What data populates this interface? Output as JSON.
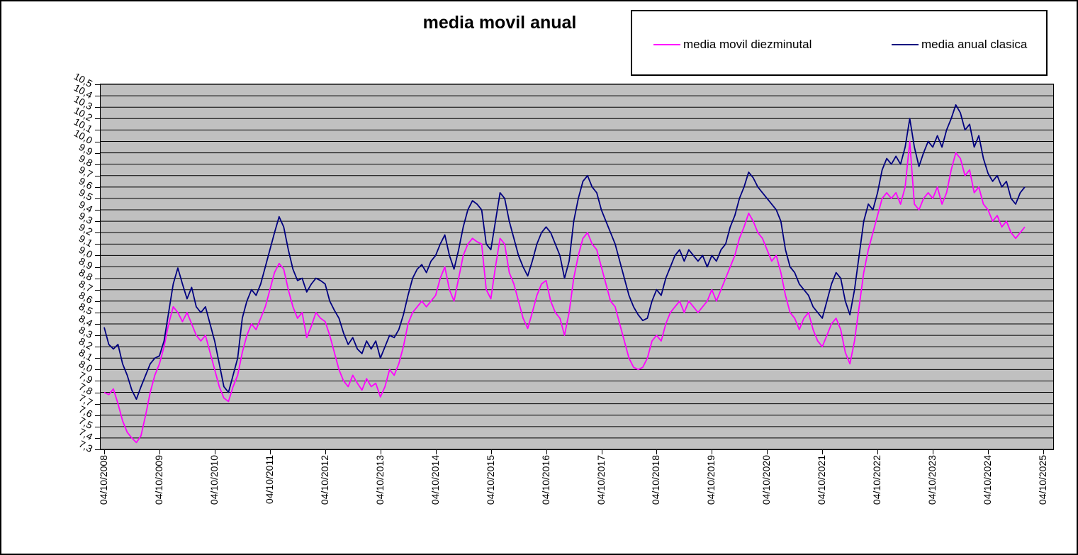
{
  "chart_data": {
    "type": "line",
    "title": "media movil anual",
    "legend_position": "top-right",
    "grid": "horizontal",
    "plot_bg_color": "#C0C0C0",
    "grid_color": "#000000",
    "y_min": 7.3,
    "y_max": 10.5,
    "y_step": 0.1,
    "y_tick_labels": [
      "7,3",
      "7,4",
      "7,5",
      "7,6",
      "7,7",
      "7,8",
      "7,9",
      "8,0",
      "8,1",
      "8,2",
      "8,3",
      "8,4",
      "8,5",
      "8,6",
      "8,7",
      "8,8",
      "8,9",
      "9,0",
      "9,1",
      "9,2",
      "9,3",
      "9,4",
      "9,5",
      "9,6",
      "9,7",
      "9,8",
      "9,9",
      "10,0",
      "10,1",
      "10,2",
      "10,3",
      "10,4",
      "10,5"
    ],
    "x_tick_labels": [
      "04/10/2008",
      "04/10/2009",
      "04/10/2010",
      "04/10/2011",
      "04/10/2012",
      "04/10/2013",
      "04/10/2014",
      "04/10/2015",
      "04/10/2016",
      "04/10/2017",
      "04/10/2018",
      "04/10/2019",
      "04/10/2020",
      "04/10/2021",
      "04/10/2022",
      "04/10/2023",
      "04/10/2024",
      "04/10/2025"
    ],
    "x_start": "04/10/2008",
    "x_frequency": "monthly",
    "series": [
      {
        "name": "media movil diezminutal",
        "color": "#FF00FF",
        "values": [
          7.8,
          7.78,
          7.83,
          7.7,
          7.55,
          7.45,
          7.4,
          7.36,
          7.42,
          7.6,
          7.8,
          7.95,
          8.05,
          8.2,
          8.4,
          8.55,
          8.5,
          8.42,
          8.5,
          8.4,
          8.3,
          8.25,
          8.3,
          8.15,
          8.0,
          7.85,
          7.75,
          7.72,
          7.85,
          7.95,
          8.15,
          8.3,
          8.4,
          8.35,
          8.45,
          8.55,
          8.7,
          8.85,
          8.93,
          8.88,
          8.7,
          8.55,
          8.45,
          8.5,
          8.28,
          8.38,
          8.5,
          8.45,
          8.42,
          8.3,
          8.15,
          8.0,
          7.9,
          7.85,
          7.95,
          7.88,
          7.82,
          7.92,
          7.85,
          7.88,
          7.76,
          7.85,
          8.0,
          7.95,
          8.05,
          8.2,
          8.4,
          8.5,
          8.55,
          8.6,
          8.55,
          8.6,
          8.65,
          8.8,
          8.9,
          8.7,
          8.6,
          8.8,
          9.0,
          9.1,
          9.15,
          9.12,
          9.1,
          8.7,
          8.62,
          8.9,
          9.15,
          9.1,
          8.85,
          8.75,
          8.6,
          8.45,
          8.36,
          8.5,
          8.65,
          8.75,
          8.78,
          8.6,
          8.5,
          8.45,
          8.3,
          8.5,
          8.8,
          9.0,
          9.15,
          9.2,
          9.1,
          9.05,
          8.9,
          8.75,
          8.6,
          8.55,
          8.4,
          8.25,
          8.1,
          8.02,
          8.0,
          8.02,
          8.1,
          8.25,
          8.3,
          8.25,
          8.4,
          8.5,
          8.55,
          8.6,
          8.5,
          8.6,
          8.55,
          8.5,
          8.55,
          8.6,
          8.7,
          8.6,
          8.7,
          8.8,
          8.9,
          9.0,
          9.15,
          9.25,
          9.37,
          9.3,
          9.2,
          9.15,
          9.05,
          8.95,
          9.0,
          8.85,
          8.65,
          8.5,
          8.45,
          8.35,
          8.45,
          8.5,
          8.35,
          8.25,
          8.2,
          8.3,
          8.4,
          8.45,
          8.35,
          8.15,
          8.05,
          8.25,
          8.55,
          8.85,
          9.05,
          9.2,
          9.35,
          9.5,
          9.55,
          9.5,
          9.55,
          9.45,
          9.6,
          10.0,
          9.45,
          9.4,
          9.5,
          9.55,
          9.5,
          9.6,
          9.45,
          9.55,
          9.75,
          9.9,
          9.85,
          9.7,
          9.75,
          9.55,
          9.6,
          9.45,
          9.4,
          9.3,
          9.35,
          9.25,
          9.3,
          9.2,
          9.15,
          9.2,
          9.25
        ]
      },
      {
        "name": "media anual clasica",
        "color": "#000080",
        "values": [
          8.37,
          8.22,
          8.18,
          8.22,
          8.05,
          7.95,
          7.82,
          7.74,
          7.85,
          7.95,
          8.05,
          8.1,
          8.12,
          8.25,
          8.5,
          8.75,
          8.89,
          8.75,
          8.62,
          8.72,
          8.55,
          8.5,
          8.55,
          8.4,
          8.25,
          8.05,
          7.85,
          7.8,
          7.95,
          8.1,
          8.45,
          8.6,
          8.7,
          8.65,
          8.75,
          8.9,
          9.05,
          9.2,
          9.34,
          9.25,
          9.05,
          8.88,
          8.78,
          8.8,
          8.68,
          8.75,
          8.8,
          8.78,
          8.75,
          8.6,
          8.52,
          8.45,
          8.32,
          8.22,
          8.28,
          8.18,
          8.14,
          8.25,
          8.18,
          8.25,
          8.1,
          8.2,
          8.3,
          8.28,
          8.35,
          8.48,
          8.65,
          8.8,
          8.88,
          8.92,
          8.85,
          8.95,
          9.0,
          9.1,
          9.18,
          9.0,
          8.88,
          9.05,
          9.25,
          9.4,
          9.48,
          9.45,
          9.4,
          9.1,
          9.05,
          9.3,
          9.55,
          9.5,
          9.3,
          9.15,
          9.0,
          8.9,
          8.82,
          8.95,
          9.1,
          9.2,
          9.25,
          9.2,
          9.1,
          9.0,
          8.8,
          8.95,
          9.3,
          9.5,
          9.65,
          9.7,
          9.6,
          9.55,
          9.4,
          9.3,
          9.2,
          9.1,
          8.95,
          8.8,
          8.65,
          8.55,
          8.48,
          8.43,
          8.45,
          8.6,
          8.7,
          8.65,
          8.8,
          8.9,
          9.0,
          9.05,
          8.95,
          9.05,
          9.0,
          8.95,
          9.0,
          8.9,
          9.0,
          8.95,
          9.05,
          9.1,
          9.25,
          9.35,
          9.5,
          9.6,
          9.73,
          9.68,
          9.6,
          9.55,
          9.5,
          9.45,
          9.4,
          9.3,
          9.05,
          8.9,
          8.85,
          8.75,
          8.7,
          8.65,
          8.55,
          8.5,
          8.45,
          8.6,
          8.75,
          8.85,
          8.8,
          8.6,
          8.48,
          8.7,
          9.0,
          9.3,
          9.45,
          9.4,
          9.55,
          9.75,
          9.85,
          9.8,
          9.87,
          9.8,
          9.95,
          10.2,
          9.95,
          9.78,
          9.9,
          10.0,
          9.95,
          10.05,
          9.95,
          10.1,
          10.2,
          10.32,
          10.25,
          10.1,
          10.15,
          9.95,
          10.05,
          9.85,
          9.72,
          9.65,
          9.7,
          9.6,
          9.65,
          9.5,
          9.45,
          9.55,
          9.6
        ]
      }
    ]
  }
}
